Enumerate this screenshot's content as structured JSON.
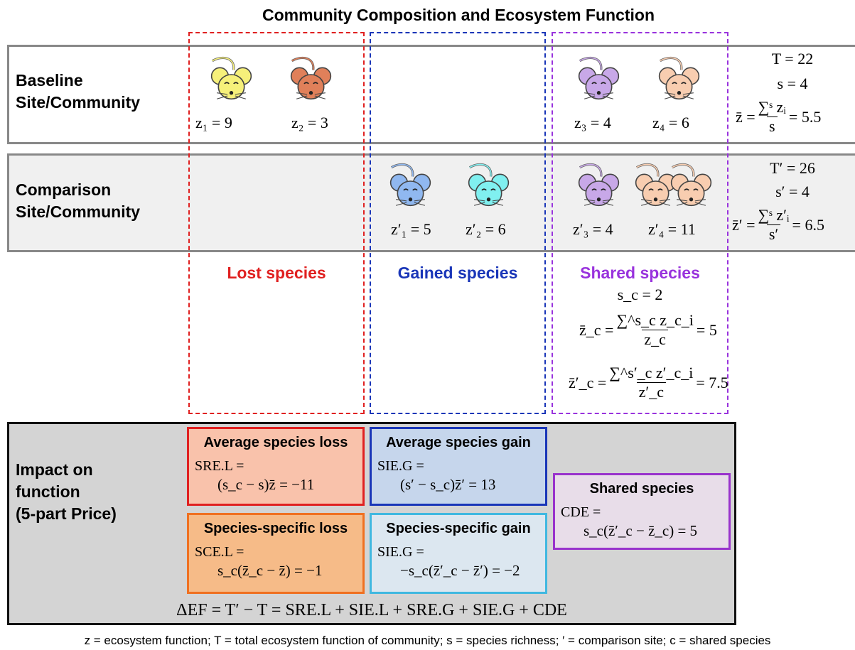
{
  "title": "Community Composition and Ecosystem Function",
  "rows": [
    {
      "label": [
        "Baseline",
        "Site/Community"
      ],
      "species": [
        "z₁ = 9",
        "z₂ = 3",
        "z₃ = 4",
        "z₄ = 6"
      ],
      "summary": {
        "total": "T = 22",
        "richness": "s = 4",
        "mean": {
          "lhs": "z̄ =",
          "numerator": "∑ˢ zᵢ",
          "denominator": "s",
          "rhs": "= 5.5"
        }
      }
    },
    {
      "label": [
        "Comparison",
        "Site/Community"
      ],
      "species": [
        "z′₁ = 5",
        "z′₂ = 6",
        "z′₃ = 4",
        "z′₄ = 11"
      ],
      "summary": {
        "total": "T′ = 26",
        "richness": "s′ = 4",
        "mean": {
          "lhs": "z̄′ =",
          "numerator": "∑ˢ z′ᵢ",
          "denominator": "s′",
          "rhs": "= 6.5"
        }
      }
    }
  ],
  "columns": [
    "Lost species",
    "Gained species",
    "Shared species"
  ],
  "shared": {
    "count": "s_c = 2",
    "mean": {
      "lhs": "z̄_c =",
      "numerator": "∑^s_c z_c_i",
      "denominator": "z_c",
      "rhs": "= 5"
    },
    "mean_comparison": {
      "lhs": "z̄′_c =",
      "numerator": "∑^s′_c z′_c_i",
      "denominator": "z′_c",
      "rhs": "= 7.5"
    }
  },
  "impact": {
    "label": [
      "Impact on",
      "function",
      "(5-part Price)"
    ],
    "boxes": [
      {
        "title": "Average species loss",
        "line1": "SRE.L =",
        "line2": "(s_c − s)z̄ = −11"
      },
      {
        "title": "Average species gain",
        "line1": "SIE.G =",
        "line2": "(s′ − s_c)z̄′ = 13"
      },
      {
        "title": "Species-specific loss",
        "line1": "SCE.L =",
        "line2": "s_c(z̄_c − z̄) = −1"
      },
      {
        "title": "Species-specific gain",
        "line1": "SIE.G =",
        "line2": "−s_c(z̄′_c − z̄′) = −2"
      },
      {
        "title": "Shared species",
        "line1": "CDE =",
        "line2": "s_c(z̄′_c − z̄_c) = 5"
      }
    ],
    "equation": "ΔEF = T′ − T = SRE.L + SIE.L + SRE.G + SIE.G + CDE"
  },
  "footer": "z = ecosystem function; T = total ecosystem function of community; s = species richness; ′ = comparison site; c = shared species"
}
